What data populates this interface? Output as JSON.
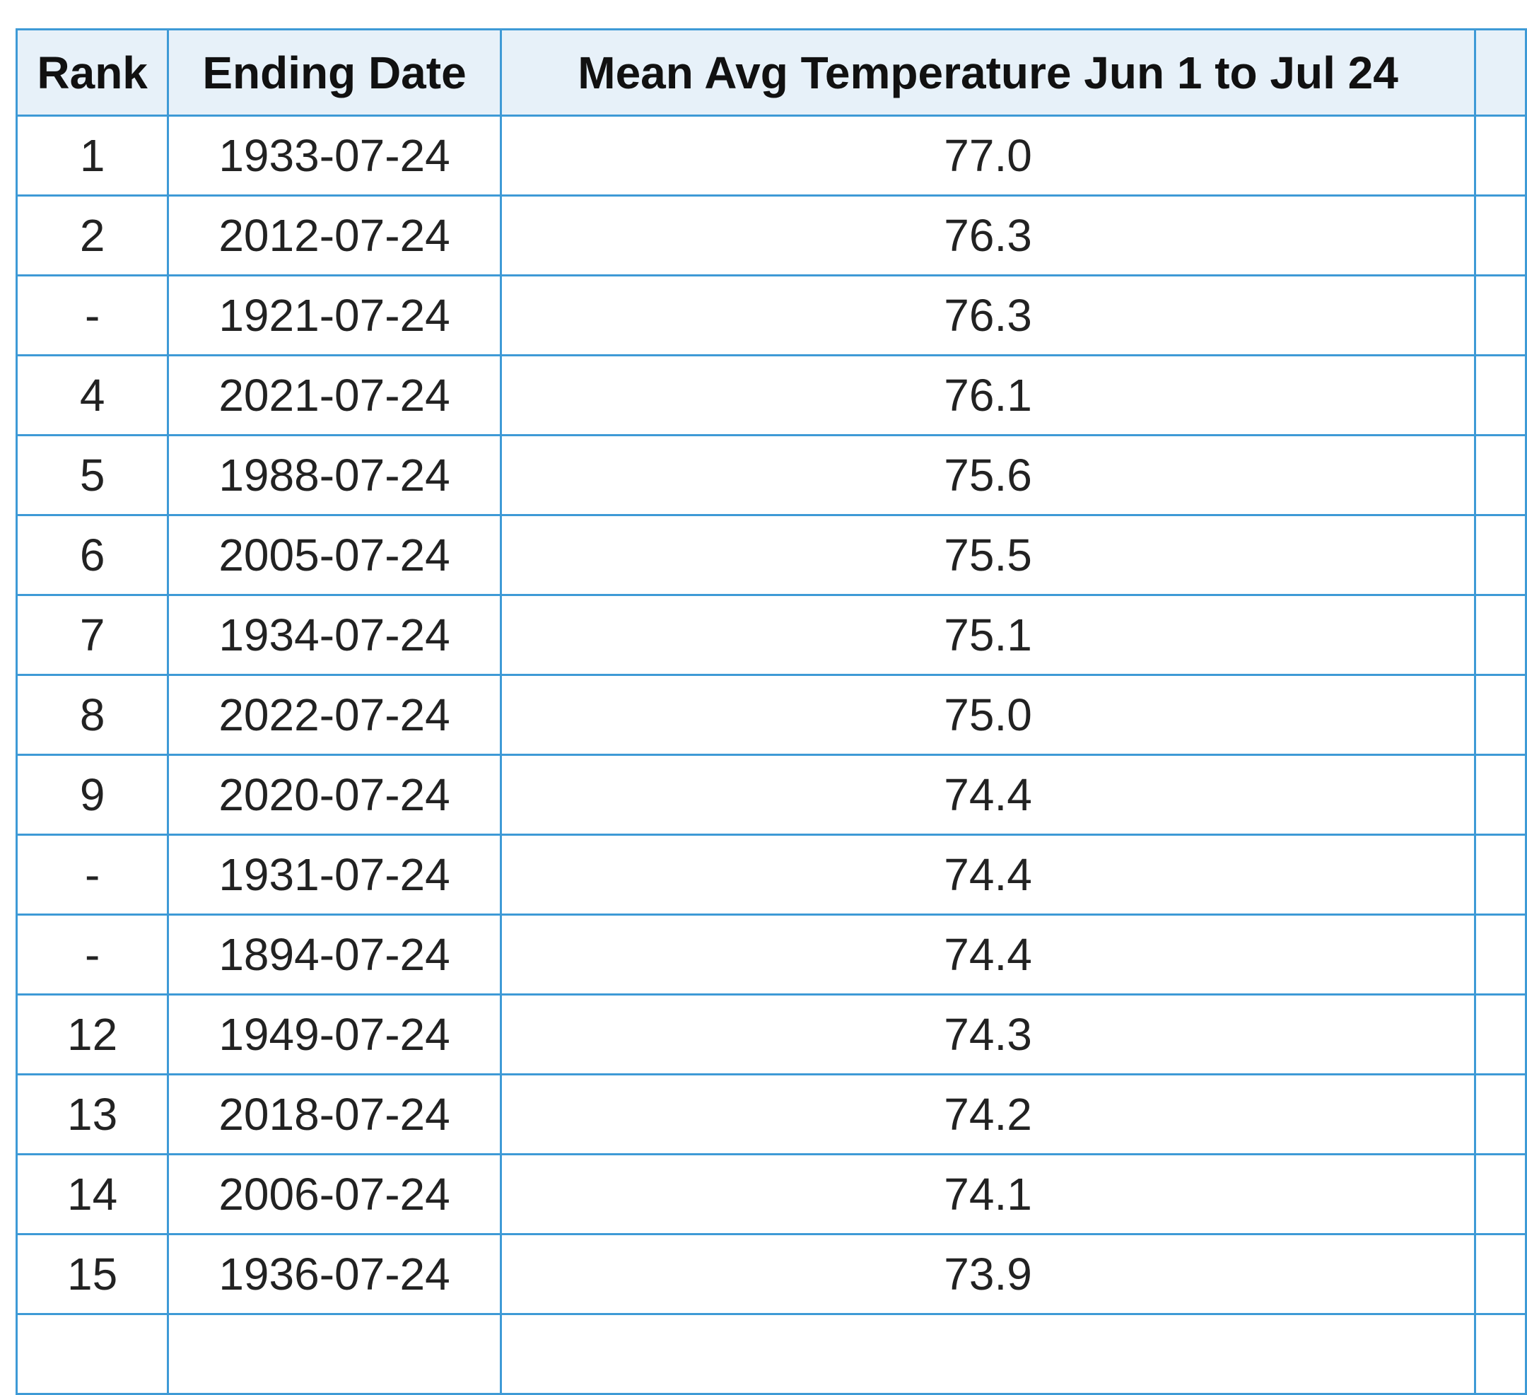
{
  "table": {
    "header": [
      "Rank",
      "Ending Date",
      "Mean Avg Temperature Jun 1 to Jul 24"
    ],
    "rows": [
      [
        "1",
        "1933-07-24",
        "77.0"
      ],
      [
        "2",
        "2012-07-24",
        "76.3"
      ],
      [
        "-",
        "1921-07-24",
        "76.3"
      ],
      [
        "4",
        "2021-07-24",
        "76.1"
      ],
      [
        "5",
        "1988-07-24",
        "75.6"
      ],
      [
        "6",
        "2005-07-24",
        "75.5"
      ],
      [
        "7",
        "1934-07-24",
        "75.1"
      ],
      [
        "8",
        "2022-07-24",
        "75.0"
      ],
      [
        "9",
        "2020-07-24",
        "74.4"
      ],
      [
        "-",
        "1931-07-24",
        "74.4"
      ],
      [
        "-",
        "1894-07-24",
        "74.4"
      ],
      [
        "12",
        "1949-07-24",
        "74.3"
      ],
      [
        "13",
        "2018-07-24",
        "74.2"
      ],
      [
        "14",
        "2006-07-24",
        "74.1"
      ],
      [
        "15",
        "1936-07-24",
        "73.9"
      ]
    ]
  }
}
